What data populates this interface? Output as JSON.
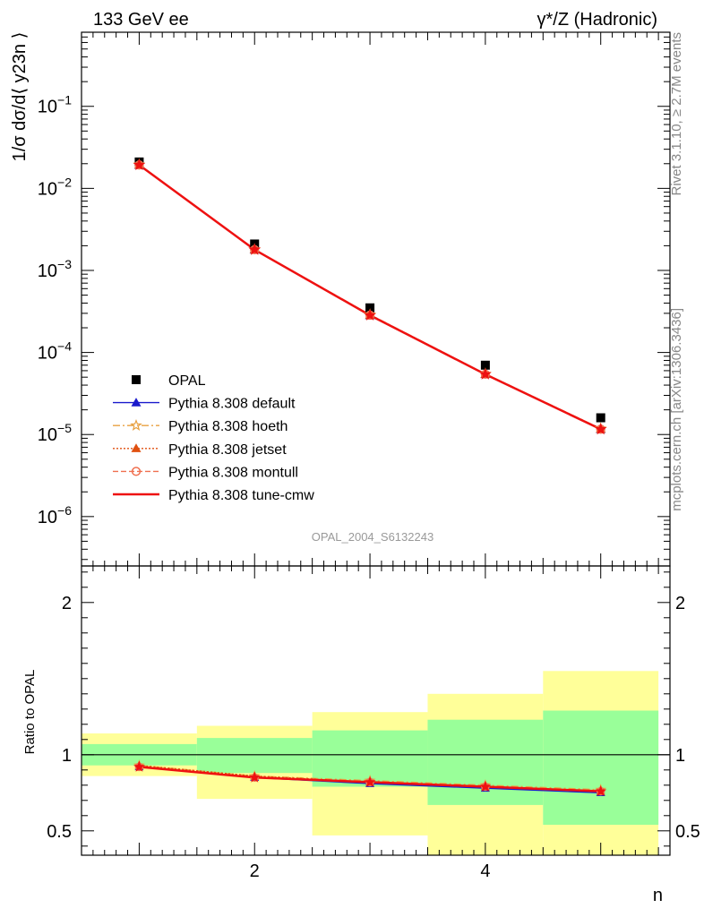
{
  "header": {
    "left_title": "133 GeV ee",
    "right_title": "γ*/Z (Hadronic)"
  },
  "side_labels": {
    "rivet": "Rivet 3.1.10, ≥ 2.7M events",
    "mcplots": "mcplots.cern.ch [arXiv:1306.3436]"
  },
  "watermark": "OPAL_2004_S6132243",
  "chart_data": [
    {
      "type": "scatter",
      "name": "main-panel",
      "ylabel": "1/σ dσ/d⟨ y23n ⟩",
      "yscale": "log",
      "ylim": [
        2.5e-07,
        0.8
      ],
      "xlim": [
        0.5,
        5.6
      ],
      "y_ticks": [
        {
          "value": 1e-06,
          "exp": "−6"
        },
        {
          "value": 1e-05,
          "exp": "−5"
        },
        {
          "value": 0.0001,
          "exp": "−4"
        },
        {
          "value": 0.001,
          "exp": "−3"
        },
        {
          "value": 0.01,
          "exp": "−2"
        },
        {
          "value": 0.1,
          "exp": "−1"
        }
      ],
      "x": [
        1,
        2,
        3,
        4,
        5
      ],
      "series": [
        {
          "name": "OPAL",
          "color": "#000000",
          "marker": "square",
          "values": [
            0.021,
            0.0021,
            0.00035,
            7e-05,
            1.6e-05
          ]
        },
        {
          "name": "Pythia 8.308 default",
          "color": "#1a1acc",
          "marker": "triangle",
          "dash": "",
          "values": [
            0.0192,
            0.00178,
            0.000283,
            5.41e-05,
            1.16e-05
          ]
        },
        {
          "name": "Pythia 8.308 hoeth",
          "color": "#e8a040",
          "marker": "star",
          "dash": "8,3,2,3",
          "values": [
            0.0195,
            0.0018,
            0.000289,
            5.48e-05,
            1.18e-05
          ]
        },
        {
          "name": "Pythia 8.308 jetset",
          "color": "#e05010",
          "marker": "triangle",
          "dash": "2,2",
          "values": [
            0.0194,
            0.0018,
            0.000286,
            5.45e-05,
            1.17e-05
          ]
        },
        {
          "name": "Pythia 8.308 montull",
          "color": "#f07050",
          "marker": "circle",
          "dash": "6,3",
          "values": [
            0.0193,
            0.00179,
            0.000285,
            5.43e-05,
            1.16e-05
          ]
        },
        {
          "name": "Pythia 8.308 tune-cmw",
          "color": "#ee1111",
          "marker": "star",
          "dash": "",
          "values": [
            0.0193,
            0.00179,
            0.000284,
            5.42e-05,
            1.16e-05
          ]
        }
      ]
    },
    {
      "type": "line",
      "name": "ratio-panel",
      "ylabel": "Ratio to OPAL",
      "xlabel": "n",
      "ylim": [
        0.34,
        2.24
      ],
      "xlim": [
        0.5,
        5.6
      ],
      "y_ticks": [
        "0.5",
        "1",
        "2"
      ],
      "x_ticks": [
        "2",
        "4"
      ],
      "bands": [
        {
          "xlo": 0.5,
          "xhi": 1.5,
          "green": [
            0.93,
            1.07
          ],
          "yellow": [
            0.86,
            1.14
          ]
        },
        {
          "xlo": 1.5,
          "xhi": 2.5,
          "green": [
            0.88,
            1.11
          ],
          "yellow": [
            0.71,
            1.19
          ]
        },
        {
          "xlo": 2.5,
          "xhi": 3.5,
          "green": [
            0.79,
            1.16
          ],
          "yellow": [
            0.47,
            1.28
          ]
        },
        {
          "xlo": 3.5,
          "xhi": 4.5,
          "green": [
            0.67,
            1.23
          ],
          "yellow": [
            0.33,
            1.4
          ]
        },
        {
          "xlo": 4.5,
          "xhi": 5.5,
          "green": [
            0.54,
            1.29
          ],
          "yellow": [
            0.33,
            1.55
          ]
        }
      ],
      "x": [
        1,
        2,
        3,
        4,
        5
      ],
      "series": [
        {
          "name": "Pythia 8.308 default",
          "color": "#1a1acc",
          "marker": "triangle",
          "dash": "",
          "values": [
            0.92,
            0.85,
            0.81,
            0.78,
            0.75
          ]
        },
        {
          "name": "Pythia 8.308 hoeth",
          "color": "#e8a040",
          "marker": "star",
          "dash": "8,3,2,3",
          "values": [
            0.93,
            0.86,
            0.83,
            0.8,
            0.77
          ]
        },
        {
          "name": "Pythia 8.308 jetset",
          "color": "#e05010",
          "marker": "triangle",
          "dash": "2,2",
          "values": [
            0.93,
            0.86,
            0.82,
            0.79,
            0.76
          ]
        },
        {
          "name": "Pythia 8.308 montull",
          "color": "#f07050",
          "marker": "circle",
          "dash": "6,3",
          "values": [
            0.92,
            0.85,
            0.82,
            0.79,
            0.76
          ]
        },
        {
          "name": "Pythia 8.308 tune-cmw",
          "color": "#ee1111",
          "marker": "star",
          "dash": "",
          "values": [
            0.92,
            0.85,
            0.82,
            0.79,
            0.76
          ]
        }
      ]
    }
  ]
}
